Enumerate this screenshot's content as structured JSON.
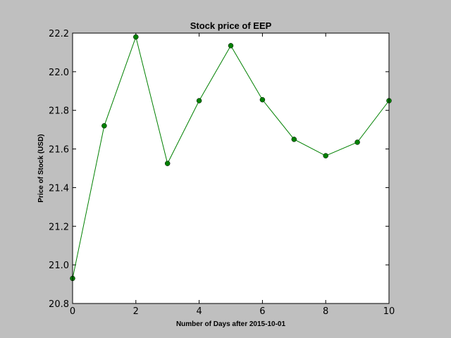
{
  "chart_data": {
    "type": "line",
    "title": "Stock price of EEP",
    "xlabel": "Number of Days after 2015-10-01",
    "ylabel": "Price of Stock (USD)",
    "xlim": [
      0,
      10
    ],
    "ylim": [
      20.8,
      22.2
    ],
    "x_ticks": [
      0,
      2,
      4,
      6,
      8,
      10
    ],
    "y_ticks": [
      20.8,
      21.0,
      21.2,
      21.4,
      21.6,
      21.8,
      22.0,
      22.2
    ],
    "x_tick_labels": [
      "0",
      "2",
      "4",
      "6",
      "8",
      "10"
    ],
    "y_tick_labels": [
      "20.8",
      "21.0",
      "21.2",
      "21.4",
      "21.6",
      "21.8",
      "22.0",
      "22.2"
    ],
    "grid": false,
    "series": [
      {
        "color": "#008000",
        "marker": "circle",
        "x": [
          0,
          1,
          2,
          3,
          4,
          5,
          6,
          7,
          8,
          9,
          10
        ],
        "values": [
          20.93,
          21.72,
          22.18,
          21.525,
          21.85,
          22.135,
          21.855,
          21.65,
          21.565,
          21.635,
          21.85
        ]
      }
    ]
  }
}
